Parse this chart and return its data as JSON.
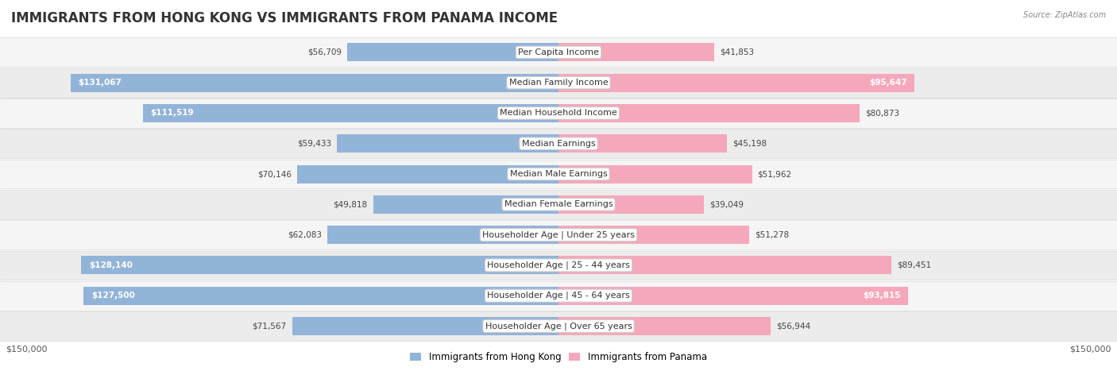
{
  "title": "IMMIGRANTS FROM HONG KONG VS IMMIGRANTS FROM PANAMA INCOME",
  "source": "Source: ZipAtlas.com",
  "categories": [
    "Per Capita Income",
    "Median Family Income",
    "Median Household Income",
    "Median Earnings",
    "Median Male Earnings",
    "Median Female Earnings",
    "Householder Age | Under 25 years",
    "Householder Age | 25 - 44 years",
    "Householder Age | 45 - 64 years",
    "Householder Age | Over 65 years"
  ],
  "hk_values": [
    56709,
    131067,
    111519,
    59433,
    70146,
    49818,
    62083,
    128140,
    127500,
    71567
  ],
  "pa_values": [
    41853,
    95647,
    80873,
    45198,
    51962,
    39049,
    51278,
    89451,
    93815,
    56944
  ],
  "hk_color": "#92b4d8",
  "pa_color": "#f5a8bc",
  "max_value": 150000,
  "xlabel_left": "$150,000",
  "xlabel_right": "$150,000",
  "legend_hk": "Immigrants from Hong Kong",
  "legend_pa": "Immigrants from Panama",
  "bg_color": "#ffffff",
  "row_bg_even": "#f5f5f5",
  "row_bg_odd": "#ececec",
  "row_border": "#dddddd",
  "title_fontsize": 12,
  "label_fontsize": 8,
  "value_fontsize": 7.5,
  "bar_height": 0.6,
  "inside_threshold": 90000
}
